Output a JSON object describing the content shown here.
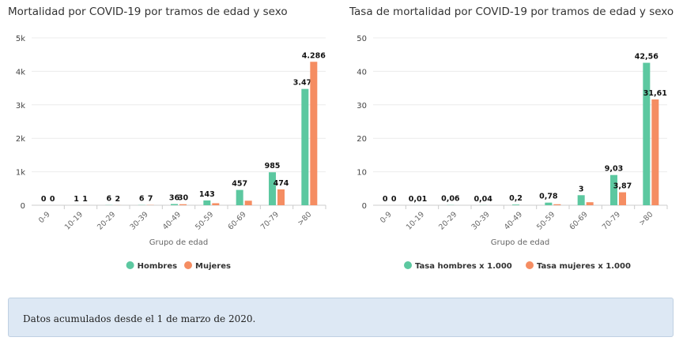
{
  "charts": [
    {
      "id": "left",
      "chart_data": {
        "type": "bar",
        "title": "Mortalidad por COVID-19 por tramos de edad y sexo",
        "xlabel": "Grupo de edad",
        "ylabel": "",
        "categories": [
          "0-9",
          "10-19",
          "20-29",
          "30-39",
          "40-49",
          "50-59",
          "60-69",
          "70-79",
          ">80"
        ],
        "ylim": [
          0,
          5000
        ],
        "yticks": [
          0,
          1000,
          2000,
          3000,
          4000,
          5000
        ],
        "ytick_labels": [
          "0",
          "1k",
          "2k",
          "3k",
          "4k",
          "5k"
        ],
        "grid": true,
        "legend_position": "bottom-center",
        "series": [
          {
            "name": "Hombres",
            "color": "#5cc8a0",
            "values": [
              0,
              1,
              6,
              6,
              36,
              143,
              457,
              985,
              3475
            ],
            "labels": [
              "0",
              "1",
              "6",
              "6",
              "36",
              "143",
              "457",
              "985",
              "3.475"
            ]
          },
          {
            "name": "Mujeres",
            "color": "#f58d62",
            "values": [
              0,
              1,
              2,
              7,
              30,
              60,
              135,
              474,
              4286
            ],
            "labels": [
              "0",
              "1",
              "2",
              "7",
              "30",
              "",
              "",
              "474",
              "4.286"
            ]
          }
        ]
      }
    },
    {
      "id": "right",
      "chart_data": {
        "type": "bar",
        "title": "Tasa de mortalidad por COVID-19 por tramos de edad y sexo",
        "xlabel": "Grupo de edad",
        "ylabel": "",
        "categories": [
          "0-9",
          "10-19",
          "20-29",
          "30-39",
          "40-49",
          "50-59",
          "60-69",
          "70-79",
          ">80"
        ],
        "ylim": [
          0,
          50
        ],
        "yticks": [
          0,
          10,
          20,
          30,
          40,
          50
        ],
        "ytick_labels": [
          "0",
          "10",
          "20",
          "30",
          "40",
          "50"
        ],
        "grid": true,
        "legend_position": "bottom-center",
        "series": [
          {
            "name": "Tasa hombres x 1.000",
            "color": "#5cc8a0",
            "values": [
              0,
              0.01,
              0.06,
              0.04,
              0.2,
              0.78,
              3,
              9.03,
              42.56
            ],
            "labels": [
              "0",
              "0,01",
              "0,06",
              "0,04",
              "0,2",
              "0,78",
              "3",
              "9,03",
              "42,56"
            ]
          },
          {
            "name": "Tasa mujeres x 1.000",
            "color": "#f58d62",
            "values": [
              0,
              0,
              0,
              0,
              0,
              0.3,
              0.9,
              3.87,
              31.61
            ],
            "labels": [
              "0",
              "",
              "",
              "",
              "",
              "",
              "",
              "3,87",
              "31,61"
            ]
          }
        ]
      }
    }
  ],
  "note": {
    "text": "Datos acumulados desde el 1 de marzo de 2020."
  }
}
